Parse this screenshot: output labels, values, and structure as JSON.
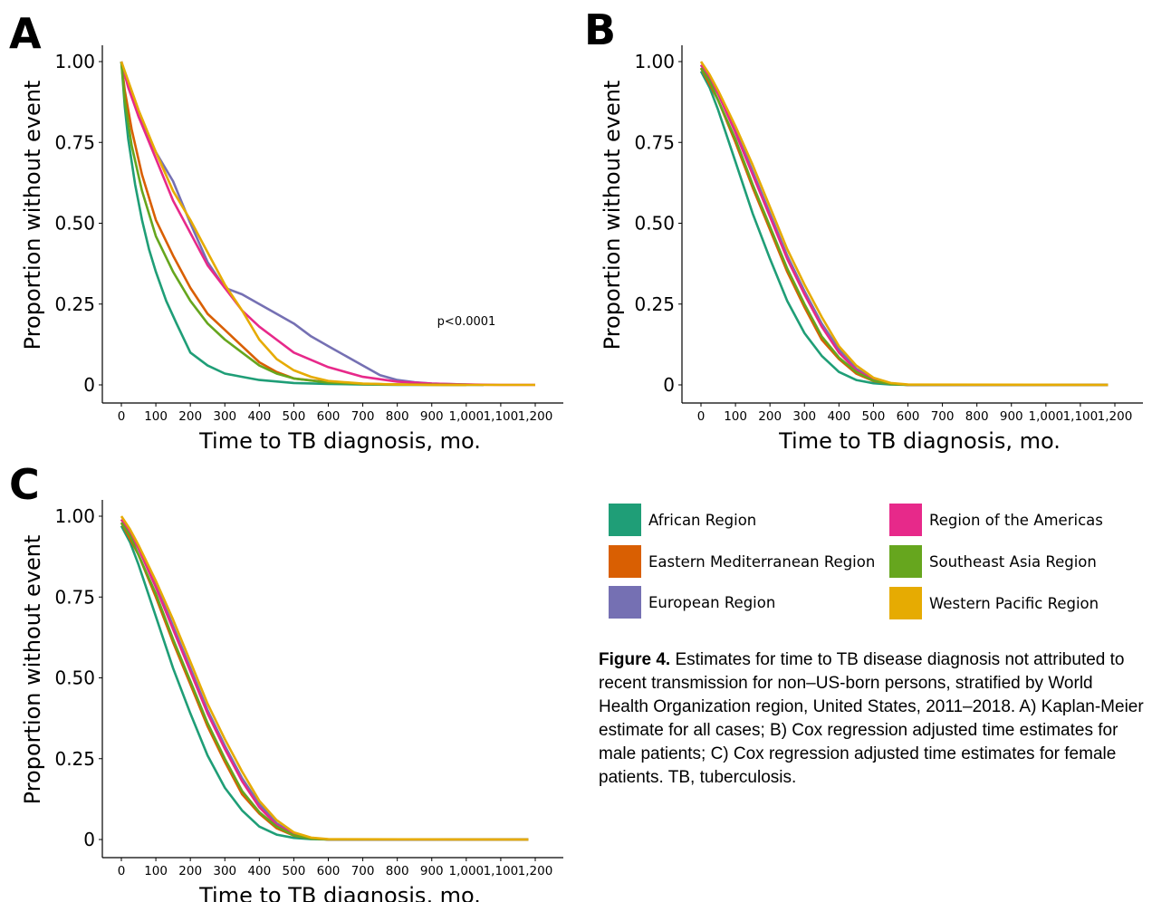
{
  "colors": {
    "african": "#1f9e77",
    "eastern_med": "#d95f02",
    "european": "#7570b3",
    "americas": "#e7298a",
    "southeast_asia": "#66a61e",
    "western_pacific": "#e6ab02"
  },
  "legend": [
    {
      "key": "african",
      "label": "African Region",
      "color": "#1f9e77"
    },
    {
      "key": "americas",
      "label": "Region of the Americas",
      "color": "#e7298a"
    },
    {
      "key": "eastern_med",
      "label": "Eastern Mediterranean Region",
      "color": "#d95f02"
    },
    {
      "key": "southeast_asia",
      "label": "Southeast Asia Region",
      "color": "#66a61e"
    },
    {
      "key": "european",
      "label": "European Region",
      "color": "#7570b3"
    },
    {
      "key": "western_pacific",
      "label": "Western Pacific Region",
      "color": "#e6ab02"
    }
  ],
  "caption": {
    "label": "Figure 4.",
    "text": " Estimates for time to TB disease diagnosis not attributed to recent transmission for non–US-born persons, stratified by World Health Organization region, United States, 2011–2018. A) Kaplan-Meier estimate for all cases; B) Cox regression adjusted time estimates for male patients; C) Cox regression adjusted time estimates for female patients. TB, tuberculosis."
  },
  "chart_data": [
    {
      "panel": "A",
      "type": "line",
      "xlabel": "Time to TB diagnosis, mo.",
      "ylabel": "Proportion without event",
      "xlim": [
        0,
        1200
      ],
      "ylim": [
        0,
        1
      ],
      "x_ticks": [
        "0",
        "100",
        "200",
        "300",
        "400",
        "500",
        "600",
        "700",
        "800",
        "900",
        "1,000",
        "1,100",
        "1,200"
      ],
      "y_ticks": [
        "0",
        "0.25",
        "0.50",
        "0.75",
        "1.00"
      ],
      "annotation": "p<0.0001",
      "grid": false,
      "series": [
        {
          "name": "African Region",
          "key": "african",
          "x": [
            0,
            10,
            20,
            40,
            60,
            80,
            100,
            130,
            160,
            200,
            250,
            300,
            350,
            400,
            500,
            600,
            700,
            800,
            1050
          ],
          "y": [
            1.0,
            0.86,
            0.76,
            0.62,
            0.51,
            0.42,
            0.35,
            0.26,
            0.19,
            0.1,
            0.06,
            0.035,
            0.025,
            0.015,
            0.006,
            0.003,
            0.001,
            0.0,
            0.0
          ]
        },
        {
          "name": "Eastern Mediterranean Region",
          "key": "eastern_med",
          "x": [
            0,
            10,
            30,
            60,
            100,
            150,
            200,
            250,
            300,
            350,
            400,
            450,
            500,
            600,
            700,
            800,
            1000
          ],
          "y": [
            1.0,
            0.91,
            0.79,
            0.65,
            0.51,
            0.4,
            0.3,
            0.22,
            0.17,
            0.12,
            0.07,
            0.04,
            0.02,
            0.008,
            0.003,
            0.001,
            0.0
          ]
        },
        {
          "name": "European Region",
          "key": "european",
          "x": [
            0,
            20,
            50,
            100,
            150,
            200,
            250,
            300,
            350,
            400,
            450,
            500,
            550,
            600,
            650,
            700,
            750,
            800,
            850,
            900,
            1000,
            1050
          ],
          "y": [
            1.0,
            0.93,
            0.83,
            0.72,
            0.63,
            0.5,
            0.38,
            0.3,
            0.28,
            0.25,
            0.22,
            0.19,
            0.15,
            0.12,
            0.09,
            0.06,
            0.03,
            0.015,
            0.008,
            0.004,
            0.001,
            0.0
          ]
        },
        {
          "name": "Region of the Americas",
          "key": "americas",
          "x": [
            0,
            20,
            50,
            100,
            150,
            200,
            250,
            300,
            350,
            400,
            450,
            500,
            600,
            700,
            800,
            900,
            1000,
            1100,
            1200
          ],
          "y": [
            1.0,
            0.92,
            0.83,
            0.7,
            0.57,
            0.47,
            0.37,
            0.3,
            0.23,
            0.18,
            0.14,
            0.1,
            0.055,
            0.025,
            0.01,
            0.004,
            0.001,
            0.0,
            0.0
          ]
        },
        {
          "name": "Southeast Asia Region",
          "key": "southeast_asia",
          "x": [
            0,
            10,
            30,
            60,
            100,
            150,
            200,
            250,
            300,
            350,
            400,
            450,
            500,
            600,
            700,
            800,
            1000
          ],
          "y": [
            1.0,
            0.88,
            0.74,
            0.6,
            0.46,
            0.35,
            0.26,
            0.19,
            0.14,
            0.1,
            0.06,
            0.035,
            0.02,
            0.007,
            0.003,
            0.001,
            0.0
          ]
        },
        {
          "name": "Western Pacific Region",
          "key": "western_pacific",
          "x": [
            0,
            20,
            50,
            100,
            150,
            200,
            250,
            300,
            350,
            400,
            450,
            500,
            550,
            600,
            700,
            800,
            900,
            1000,
            1200
          ],
          "y": [
            1.0,
            0.94,
            0.85,
            0.72,
            0.6,
            0.51,
            0.41,
            0.31,
            0.23,
            0.14,
            0.08,
            0.045,
            0.025,
            0.012,
            0.004,
            0.001,
            0.0,
            0.0,
            0.0
          ]
        }
      ]
    },
    {
      "panel": "B",
      "type": "line",
      "xlabel": "Time to TB diagnosis, mo.",
      "ylabel": "Proportion without event",
      "xlim": [
        0,
        1200
      ],
      "ylim": [
        0,
        1
      ],
      "x_ticks": [
        "0",
        "100",
        "200",
        "300",
        "400",
        "500",
        "600",
        "700",
        "800",
        "900",
        "1,000",
        "1,100",
        "1,200"
      ],
      "y_ticks": [
        "0",
        "0.25",
        "0.50",
        "0.75",
        "1.00"
      ],
      "grid": false,
      "series": [
        {
          "name": "African Region",
          "key": "african",
          "x": [
            0,
            25,
            50,
            100,
            150,
            200,
            250,
            300,
            350,
            400,
            450,
            500,
            550,
            600,
            1180
          ],
          "y": [
            0.97,
            0.92,
            0.85,
            0.69,
            0.53,
            0.39,
            0.26,
            0.16,
            0.09,
            0.04,
            0.015,
            0.005,
            0.001,
            0.0,
            0.0
          ]
        },
        {
          "name": "Eastern Mediterranean Region",
          "key": "eastern_med",
          "x": [
            0,
            25,
            50,
            100,
            150,
            200,
            250,
            300,
            350,
            400,
            450,
            500,
            550,
            600,
            1180
          ],
          "y": [
            0.98,
            0.93,
            0.88,
            0.75,
            0.61,
            0.48,
            0.35,
            0.24,
            0.14,
            0.08,
            0.035,
            0.012,
            0.003,
            0.0,
            0.0
          ]
        },
        {
          "name": "European Region",
          "key": "european",
          "x": [
            0,
            25,
            50,
            100,
            150,
            200,
            250,
            300,
            350,
            400,
            450,
            500,
            550,
            600,
            1180
          ],
          "y": [
            0.99,
            0.95,
            0.9,
            0.79,
            0.66,
            0.53,
            0.4,
            0.29,
            0.19,
            0.11,
            0.05,
            0.018,
            0.005,
            0.0,
            0.0
          ]
        },
        {
          "name": "Region of the Americas",
          "key": "americas",
          "x": [
            0,
            25,
            50,
            100,
            150,
            200,
            250,
            300,
            350,
            400,
            450,
            500,
            550,
            600,
            1180
          ],
          "y": [
            0.99,
            0.95,
            0.9,
            0.78,
            0.65,
            0.52,
            0.39,
            0.28,
            0.18,
            0.1,
            0.045,
            0.016,
            0.004,
            0.0,
            0.0
          ]
        },
        {
          "name": "Southeast Asia Region",
          "key": "southeast_asia",
          "x": [
            0,
            25,
            50,
            100,
            150,
            200,
            250,
            300,
            350,
            400,
            450,
            500,
            550,
            600,
            1180
          ],
          "y": [
            0.98,
            0.94,
            0.88,
            0.76,
            0.62,
            0.49,
            0.36,
            0.25,
            0.15,
            0.085,
            0.04,
            0.013,
            0.003,
            0.0,
            0.0
          ]
        },
        {
          "name": "Western Pacific Region",
          "key": "western_pacific",
          "x": [
            0,
            25,
            50,
            100,
            150,
            200,
            250,
            300,
            350,
            400,
            450,
            500,
            550,
            600,
            1180
          ],
          "y": [
            1.0,
            0.96,
            0.91,
            0.8,
            0.68,
            0.55,
            0.42,
            0.31,
            0.21,
            0.12,
            0.06,
            0.022,
            0.006,
            0.001,
            0.0
          ]
        }
      ]
    },
    {
      "panel": "C",
      "type": "line",
      "xlabel": "Time to TB diagnosis, mo.",
      "ylabel": "Proportion without event",
      "xlim": [
        0,
        1200
      ],
      "ylim": [
        0,
        1
      ],
      "x_ticks": [
        "0",
        "100",
        "200",
        "300",
        "400",
        "500",
        "600",
        "700",
        "800",
        "900",
        "1,000",
        "1,100",
        "1,200"
      ],
      "y_ticks": [
        "0",
        "0.25",
        "0.50",
        "0.75",
        "1.00"
      ],
      "grid": false,
      "series": [
        {
          "name": "African Region",
          "key": "african",
          "x": [
            0,
            25,
            50,
            100,
            150,
            200,
            250,
            300,
            350,
            400,
            450,
            500,
            550,
            600,
            1180
          ],
          "y": [
            0.97,
            0.92,
            0.85,
            0.69,
            0.53,
            0.39,
            0.26,
            0.16,
            0.09,
            0.04,
            0.015,
            0.005,
            0.001,
            0.0,
            0.0
          ]
        },
        {
          "name": "Eastern Mediterranean Region",
          "key": "eastern_med",
          "x": [
            0,
            25,
            50,
            100,
            150,
            200,
            250,
            300,
            350,
            400,
            450,
            500,
            550,
            600,
            1180
          ],
          "y": [
            0.98,
            0.93,
            0.88,
            0.75,
            0.61,
            0.48,
            0.35,
            0.24,
            0.14,
            0.08,
            0.035,
            0.012,
            0.003,
            0.0,
            0.0
          ]
        },
        {
          "name": "European Region",
          "key": "european",
          "x": [
            0,
            25,
            50,
            100,
            150,
            200,
            250,
            300,
            350,
            400,
            450,
            500,
            550,
            600,
            1180
          ],
          "y": [
            0.99,
            0.95,
            0.9,
            0.79,
            0.66,
            0.53,
            0.4,
            0.29,
            0.19,
            0.11,
            0.05,
            0.018,
            0.005,
            0.0,
            0.0
          ]
        },
        {
          "name": "Region of the Americas",
          "key": "americas",
          "x": [
            0,
            25,
            50,
            100,
            150,
            200,
            250,
            300,
            350,
            400,
            450,
            500,
            550,
            600,
            1180
          ],
          "y": [
            0.99,
            0.95,
            0.9,
            0.78,
            0.65,
            0.52,
            0.39,
            0.28,
            0.18,
            0.1,
            0.045,
            0.016,
            0.004,
            0.0,
            0.0
          ]
        },
        {
          "name": "Southeast Asia Region",
          "key": "southeast_asia",
          "x": [
            0,
            25,
            50,
            100,
            150,
            200,
            250,
            300,
            350,
            400,
            450,
            500,
            550,
            600,
            1180
          ],
          "y": [
            0.98,
            0.94,
            0.88,
            0.76,
            0.62,
            0.49,
            0.36,
            0.25,
            0.15,
            0.085,
            0.04,
            0.013,
            0.003,
            0.0,
            0.0
          ]
        },
        {
          "name": "Western Pacific Region",
          "key": "western_pacific",
          "x": [
            0,
            25,
            50,
            100,
            150,
            200,
            250,
            300,
            350,
            400,
            450,
            500,
            550,
            600,
            1180
          ],
          "y": [
            1.0,
            0.96,
            0.91,
            0.8,
            0.68,
            0.55,
            0.42,
            0.31,
            0.21,
            0.12,
            0.06,
            0.022,
            0.006,
            0.001,
            0.0
          ]
        }
      ]
    }
  ]
}
